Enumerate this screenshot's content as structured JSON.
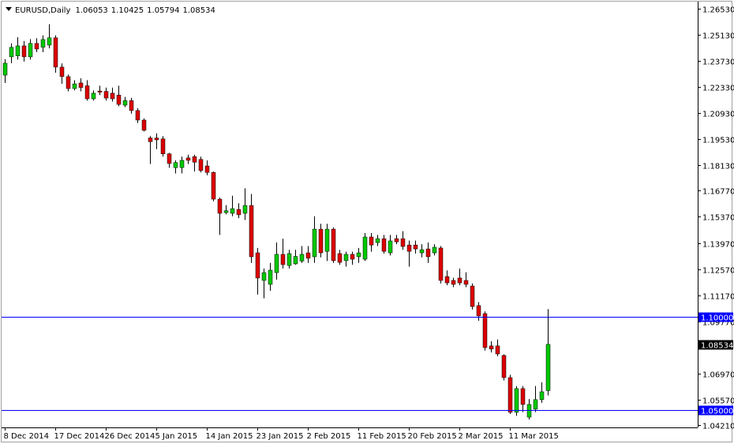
{
  "chart_data": {
    "type": "candlestick",
    "header": {
      "symbol": "EURUSD,Daily",
      "ohlc": [
        1.06053,
        1.10425,
        1.05794,
        1.08534
      ]
    },
    "categories": [
      "8 Dec 2014",
      null,
      null,
      null,
      null,
      null,
      null,
      null,
      "17 Dec 2014",
      null,
      null,
      null,
      null,
      null,
      null,
      null,
      "26 Dec 2014",
      null,
      null,
      null,
      null,
      null,
      null,
      null,
      "5 Jan 2015",
      null,
      null,
      null,
      null,
      null,
      null,
      null,
      "14 Jan 2015",
      null,
      null,
      null,
      null,
      null,
      null,
      null,
      "23 Jan 2015",
      null,
      null,
      null,
      null,
      null,
      null,
      null,
      "2 Feb 2015",
      null,
      null,
      null,
      null,
      null,
      null,
      null,
      "11 Feb 2015",
      null,
      null,
      null,
      null,
      null,
      null,
      null,
      "20 Feb 2015",
      null,
      null,
      null,
      null,
      null,
      null,
      null,
      "2 Mar 2015",
      null,
      null,
      null,
      null,
      null,
      null,
      null,
      "11 Mar 2015",
      null,
      null,
      null,
      null,
      null,
      null
    ],
    "open": [
      1.2297,
      1.2395,
      1.24,
      1.2454,
      1.2395,
      1.2467,
      1.2446,
      1.2458,
      1.2497,
      1.234,
      1.2289,
      1.2225,
      1.2255,
      1.224,
      1.217,
      1.2212,
      1.221,
      1.22,
      1.219,
      1.2136,
      1.216,
      1.2107,
      1.2056,
      1.196,
      1.196,
      1.1955,
      1.1875,
      1.1801,
      1.1801,
      1.1853,
      1.186,
      1.1845,
      1.181,
      1.1775,
      1.1632,
      1.156,
      1.1556,
      1.1577,
      1.1556,
      1.1598,
      1.1344,
      1.1196,
      1.1175,
      1.1238,
      1.1336,
      1.1276,
      1.1285,
      1.13,
      1.1344,
      1.1323,
      1.1471,
      1.1352,
      1.1471,
      1.134,
      1.1302,
      1.1336,
      1.1323,
      1.131,
      1.1429,
      1.1399,
      1.142,
      1.1344,
      1.142,
      1.142,
      1.1386,
      1.1386,
      1.1344,
      1.1365,
      1.1344,
      1.137,
      1.1217,
      1.1196,
      1.1209,
      1.1196,
      1.1166,
      1.1061,
      1.1018,
      1.0845,
      1.0845,
      1.0794,
      1.0675,
      1.0489,
      1.0616,
      1.0463,
      1.0506,
      1.0557,
      1.06053
    ],
    "high": [
      1.2382,
      1.2467,
      1.25,
      1.248,
      1.249,
      1.2495,
      1.251,
      1.257,
      1.251,
      1.236,
      1.23,
      1.227,
      1.228,
      1.227,
      1.2215,
      1.224,
      1.223,
      1.223,
      1.224,
      1.218,
      1.2175,
      1.212,
      1.2065,
      1.197,
      1.1985,
      1.197,
      1.188,
      1.184,
      1.186,
      1.187,
      1.187,
      1.186,
      1.184,
      1.178,
      1.164,
      1.16,
      1.165,
      1.161,
      1.169,
      1.166,
      1.137,
      1.126,
      1.129,
      1.14,
      1.142,
      1.136,
      1.136,
      1.138,
      1.138,
      1.154,
      1.15,
      1.15,
      1.148,
      1.136,
      1.135,
      1.135,
      1.137,
      1.145,
      1.145,
      1.144,
      1.144,
      1.144,
      1.144,
      1.146,
      1.141,
      1.141,
      1.139,
      1.14,
      1.139,
      1.138,
      1.125,
      1.121,
      1.126,
      1.124,
      1.118,
      1.108,
      1.103,
      1.087,
      1.088,
      1.08,
      1.069,
      1.063,
      1.063,
      1.056,
      1.063,
      1.065,
      1.10425
    ],
    "low": [
      1.2255,
      1.2361,
      1.238,
      1.237,
      1.238,
      1.242,
      1.242,
      1.244,
      1.231,
      1.225,
      1.221,
      1.2215,
      1.221,
      1.216,
      1.216,
      1.219,
      1.216,
      1.2155,
      1.213,
      1.2125,
      1.209,
      1.204,
      1.1995,
      1.182,
      1.19,
      1.186,
      1.18,
      1.177,
      1.177,
      1.182,
      1.178,
      1.1775,
      1.176,
      1.162,
      1.144,
      1.155,
      1.154,
      1.153,
      1.152,
      1.129,
      1.112,
      1.11,
      1.114,
      1.12,
      1.126,
      1.126,
      1.128,
      1.129,
      1.129,
      1.129,
      1.132,
      1.13,
      1.129,
      1.128,
      1.127,
      1.128,
      1.129,
      1.13,
      1.135,
      1.138,
      1.134,
      1.133,
      1.139,
      1.136,
      1.127,
      1.134,
      1.132,
      1.129,
      1.133,
      1.118,
      1.117,
      1.116,
      1.117,
      1.116,
      1.104,
      1.098,
      1.082,
      1.081,
      1.079,
      1.066,
      1.048,
      1.047,
      1.049,
      1.045,
      1.049,
      1.054,
      1.05794
    ],
    "close": [
      1.2361,
      1.2446,
      1.2454,
      1.2395,
      1.2467,
      1.2437,
      1.2488,
      1.2497,
      1.234,
      1.2289,
      1.2225,
      1.225,
      1.223,
      1.217,
      1.22,
      1.2205,
      1.2174,
      1.217,
      1.214,
      1.216,
      1.2107,
      1.2056,
      1.2001,
      1.194,
      1.195,
      1.1875,
      1.1823,
      1.1828,
      1.184,
      1.184,
      1.183,
      1.1785,
      1.1775,
      1.1632,
      1.1556,
      1.157,
      1.1581,
      1.1548,
      1.1598,
      1.1323,
      1.1209,
      1.1238,
      1.1251,
      1.1336,
      1.1281,
      1.134,
      1.1325,
      1.1336,
      1.1315,
      1.1471,
      1.1344,
      1.1471,
      1.1302,
      1.1293,
      1.1336,
      1.131,
      1.1344,
      1.1429,
      1.1386,
      1.142,
      1.1352,
      1.1408,
      1.1403,
      1.1378,
      1.1352,
      1.1365,
      1.1361,
      1.1323,
      1.1374,
      1.1196,
      1.1183,
      1.1175,
      1.1183,
      1.1175,
      1.1056,
      1.1006,
      1.0836,
      1.0828,
      1.0802,
      1.0675,
      1.0489,
      1.0616,
      1.0531,
      1.0531,
      1.0557,
      1.0599,
      1.08534
    ],
    "up_color": "#00c800",
    "down_color": "#dc0000",
    "ylim": [
      1.0408,
      1.2687
    ],
    "yticks": [
      {
        "value": 1.2653,
        "label": "1.26530"
      },
      {
        "value": 1.2513,
        "label": "1.25130"
      },
      {
        "value": 1.2373,
        "label": "1.23730"
      },
      {
        "value": 1.2233,
        "label": "1.22330"
      },
      {
        "value": 1.2093,
        "label": "1.20930"
      },
      {
        "value": 1.1953,
        "label": "1.19530"
      },
      {
        "value": 1.1813,
        "label": "1.18130"
      },
      {
        "value": 1.1677,
        "label": "1.16770"
      },
      {
        "value": 1.1537,
        "label": "1.15370"
      },
      {
        "value": 1.1397,
        "label": "1.13970"
      },
      {
        "value": 1.1257,
        "label": "1.12570"
      },
      {
        "value": 1.1117,
        "label": "1.11170"
      },
      {
        "value": 1.0977,
        "label": "1.09770"
      },
      {
        "value": 1.0697,
        "label": "1.06970"
      },
      {
        "value": 1.0557,
        "label": "1.05570"
      },
      {
        "value": 1.0421,
        "label": "1.04210"
      }
    ],
    "hlines": [
      {
        "value": 1.1,
        "label": "1.10000",
        "color": "#0000ff"
      },
      {
        "value": 1.05,
        "label": "1.05000",
        "color": "#0000ff"
      }
    ],
    "current_price": {
      "value": 1.08534,
      "label": "1.08534",
      "color": "#000000"
    }
  }
}
